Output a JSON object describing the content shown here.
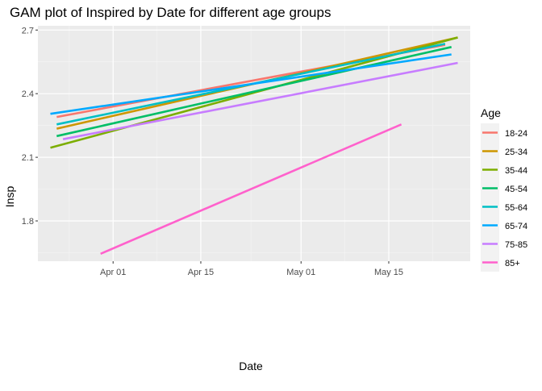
{
  "chart_data": {
    "type": "line",
    "title": "GAM plot of Inspired by Date for different age groups",
    "xlabel": "Date",
    "ylabel": "Insp",
    "x_ticks": [
      {
        "label": "Apr 01",
        "value": "2020-04-01"
      },
      {
        "label": "Apr 15",
        "value": "2020-04-15"
      },
      {
        "label": "May 01",
        "value": "2020-05-01"
      },
      {
        "label": "May 15",
        "value": "2020-05-15"
      }
    ],
    "y_ticks": [
      1.8,
      2.1,
      2.4,
      2.7
    ],
    "y_tick_labels": [
      "1.8",
      "2.1",
      "2.4",
      "2.7"
    ],
    "xlim": [
      "2020-03-20",
      "2020-05-28"
    ],
    "ylim": [
      1.61,
      2.72
    ],
    "grid": true,
    "legend": {
      "title": "Age",
      "position": "right"
    },
    "series": [
      {
        "name": "18-24",
        "color": "#F8766D",
        "x": [
          "2020-03-23",
          "2020-05-24"
        ],
        "y": [
          2.29,
          2.63
        ]
      },
      {
        "name": "25-34",
        "color": "#CD9600",
        "x": [
          "2020-03-23",
          "2020-05-26"
        ],
        "y": [
          2.235,
          2.665
        ]
      },
      {
        "name": "35-44",
        "color": "#7CAE00",
        "x": [
          "2020-03-22",
          "2020-05-26"
        ],
        "y": [
          2.145,
          2.665
        ]
      },
      {
        "name": "45-54",
        "color": "#00BE67",
        "x": [
          "2020-03-23",
          "2020-05-25"
        ],
        "y": [
          2.2,
          2.62
        ]
      },
      {
        "name": "55-64",
        "color": "#00BFC4",
        "x": [
          "2020-03-23",
          "2020-05-24"
        ],
        "y": [
          2.255,
          2.635
        ]
      },
      {
        "name": "65-74",
        "color": "#00A9FF",
        "x": [
          "2020-03-22",
          "2020-05-25"
        ],
        "y": [
          2.305,
          2.585
        ]
      },
      {
        "name": "75-85",
        "color": "#C77CFF",
        "x": [
          "2020-03-24",
          "2020-05-26"
        ],
        "y": [
          2.185,
          2.545
        ]
      },
      {
        "name": "85+",
        "color": "#FF61CC",
        "x": [
          "2020-03-30",
          "2020-05-17"
        ],
        "y": [
          1.645,
          2.255
        ]
      }
    ]
  }
}
